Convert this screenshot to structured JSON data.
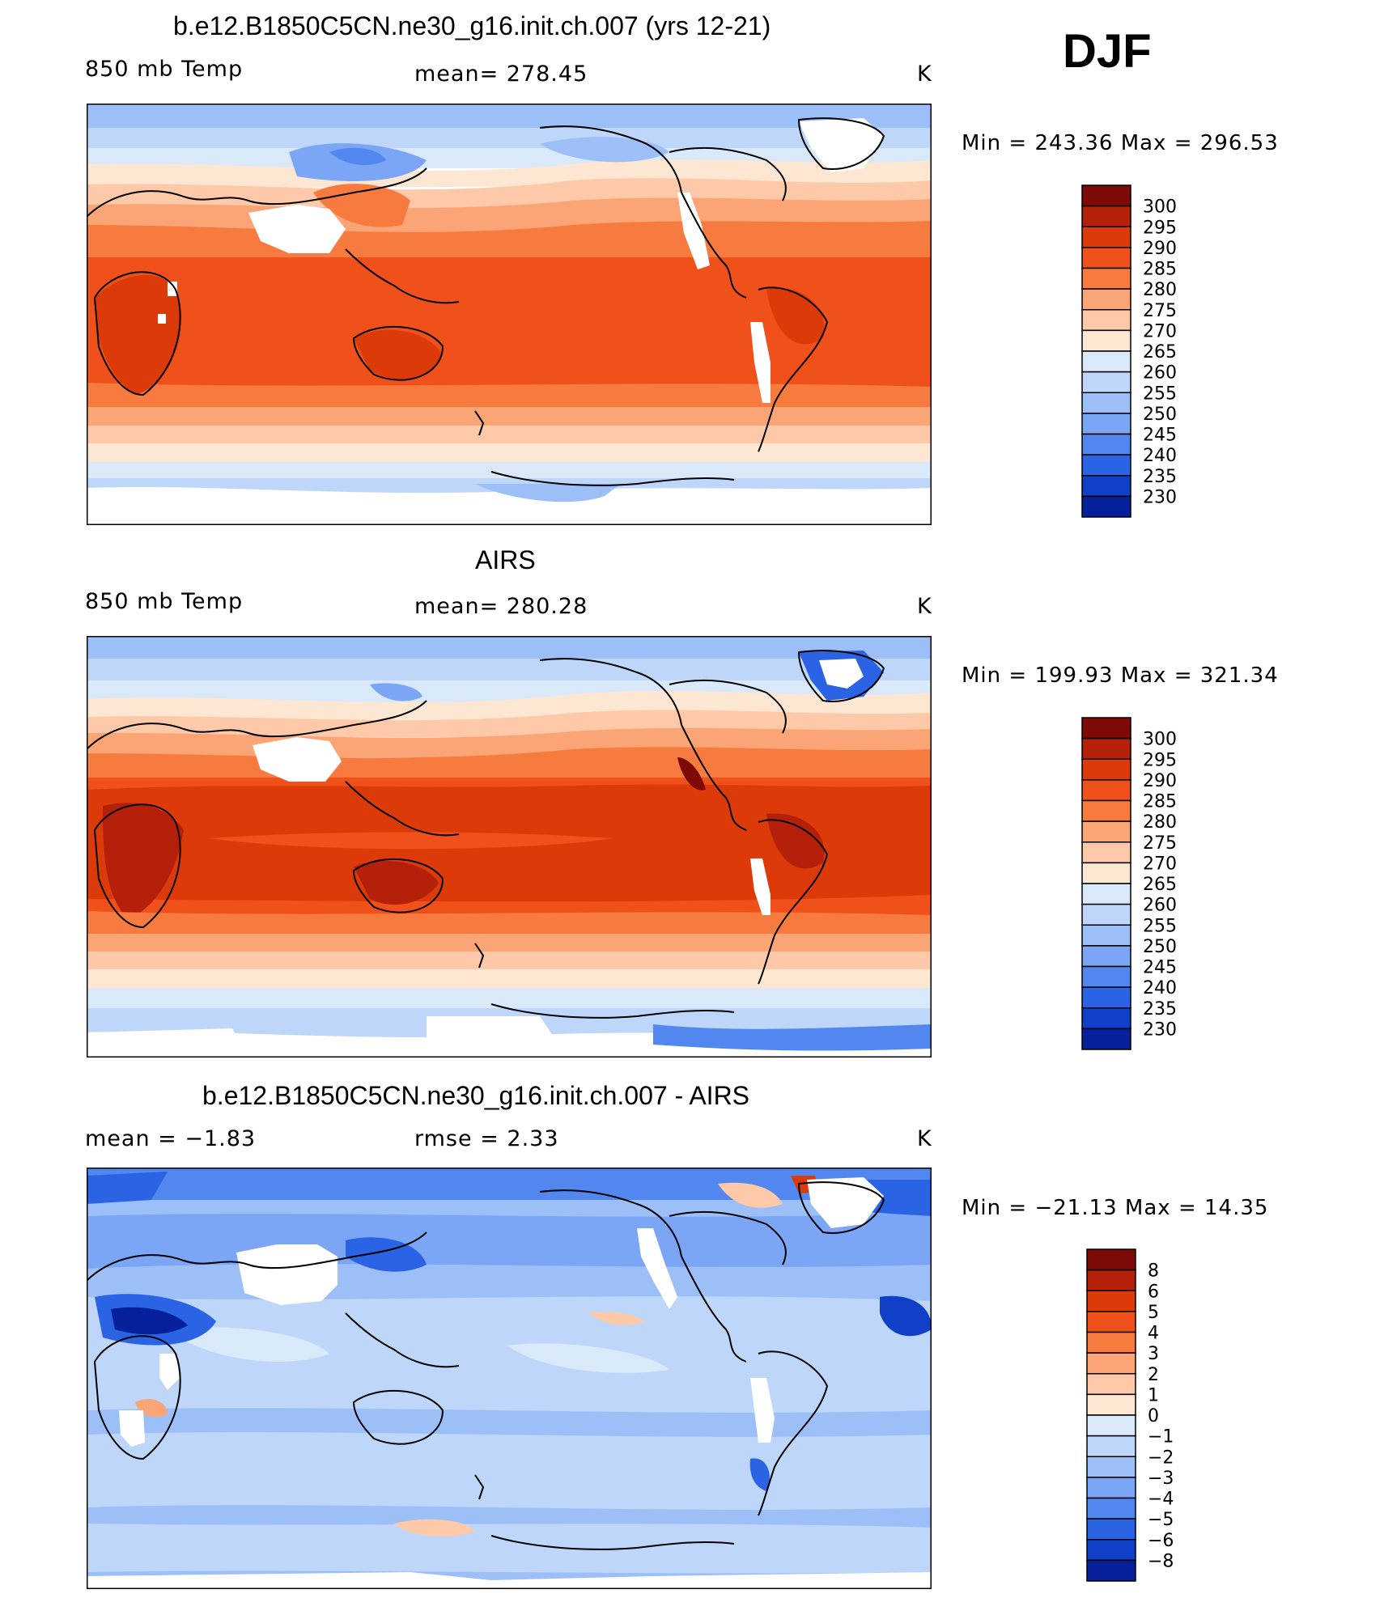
{
  "season": "DJF",
  "panels": [
    {
      "title": "b.e12.B1850C5CN.ne30_g16.init.ch.007 (yrs 12-21)",
      "left_label": "850 mb Temp",
      "center_label": "mean=  278.45",
      "units": "K",
      "minmax": "Min  =  243.36  Max  =  296.53"
    },
    {
      "title": "AIRS",
      "left_label": "850 mb Temp",
      "center_label": "mean=  280.28",
      "units": "K",
      "minmax": "Min  =  199.93  Max  =  321.34"
    },
    {
      "title": "b.e12.B1850C5CN.ne30_g16.init.ch.007 - AIRS",
      "left_label": "mean  =    −1.83",
      "center_label": "rmse  =     2.33",
      "units": "K",
      "minmax": "Min  =  −21.13  Max  =    14.35"
    }
  ],
  "colorbars": {
    "temp": {
      "levels": [
        "300",
        "295",
        "290",
        "285",
        "280",
        "275",
        "270",
        "265",
        "260",
        "255",
        "250",
        "245",
        "240",
        "235",
        "230"
      ],
      "colors": [
        "#7d0a07",
        "#b5200b",
        "#dd3a0a",
        "#f0501a",
        "#f77a3e",
        "#fba475",
        "#fdc9a8",
        "#fde6d2",
        "#d9e9fa",
        "#bdd6fa",
        "#9dbff8",
        "#7ba5f5",
        "#5187ef",
        "#2a63e3",
        "#1040c8",
        "#05209a"
      ]
    },
    "diff": {
      "levels": [
        "8",
        "6",
        "5",
        "4",
        "3",
        "2",
        "1",
        "0",
        "−1",
        "−2",
        "−3",
        "−4",
        "−5",
        "−6",
        "−8"
      ],
      "colors": [
        "#7d0a07",
        "#b5200b",
        "#dd3a0a",
        "#f0501a",
        "#f77a3e",
        "#fba475",
        "#fdc9a8",
        "#fde6d2",
        "#d9e9fa",
        "#bdd6fa",
        "#9dbff8",
        "#7ba5f5",
        "#5187ef",
        "#2a63e3",
        "#1040c8",
        "#05209a"
      ]
    }
  }
}
